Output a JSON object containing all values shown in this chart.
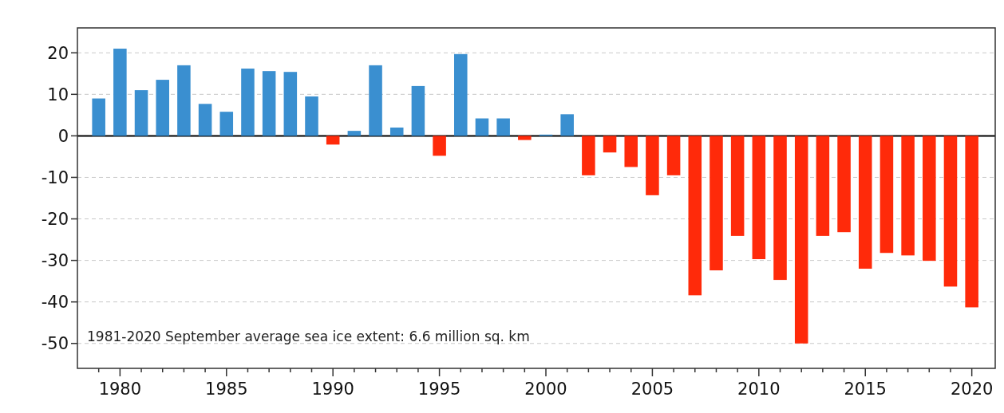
{
  "chart_data": {
    "type": "bar",
    "x": [
      1979,
      1980,
      1981,
      1982,
      1983,
      1984,
      1985,
      1986,
      1987,
      1988,
      1989,
      1990,
      1991,
      1992,
      1993,
      1994,
      1995,
      1996,
      1997,
      1998,
      1999,
      2000,
      2001,
      2002,
      2003,
      2004,
      2005,
      2006,
      2007,
      2008,
      2009,
      2010,
      2011,
      2012,
      2013,
      2014,
      2015,
      2016,
      2017,
      2018,
      2019,
      2020
    ],
    "values": [
      9,
      21,
      11,
      13.5,
      17,
      7.7,
      5.8,
      16.2,
      15.6,
      15.4,
      9.5,
      -2.1,
      1.2,
      17,
      2,
      12,
      -4.8,
      19.7,
      4.2,
      4.2,
      -1,
      0.3,
      5.2,
      -9.5,
      -4,
      -7.5,
      -14.3,
      -9.5,
      -38.4,
      -32.4,
      -24.1,
      -29.7,
      -34.7,
      -50,
      -24.1,
      -23.2,
      -32,
      -28.2,
      -28.8,
      -30.1,
      -36.3,
      -41.3
    ],
    "colors": [
      "#3a8fd0",
      "#3a8fd0",
      "#3a8fd0",
      "#3a8fd0",
      "#3a8fd0",
      "#3a8fd0",
      "#3a8fd0",
      "#3a8fd0",
      "#3a8fd0",
      "#3a8fd0",
      "#3a8fd0",
      "#ff2a0a",
      "#3a8fd0",
      "#3a8fd0",
      "#3a8fd0",
      "#3a8fd0",
      "#ff2a0a",
      "#3a8fd0",
      "#3a8fd0",
      "#3a8fd0",
      "#ff2a0a",
      "#3a8fd0",
      "#3a8fd0",
      "#ff2a0a",
      "#ff2a0a",
      "#ff2a0a",
      "#ff2a0a",
      "#ff2a0a",
      "#ff2a0a",
      "#ff2a0a",
      "#ff2a0a",
      "#ff2a0a",
      "#ff2a0a",
      "#ff2a0a",
      "#ff2a0a",
      "#ff2a0a",
      "#ff2a0a",
      "#ff2a0a",
      "#ff2a0a",
      "#ff2a0a",
      "#ff2a0a",
      "#ff2a0a"
    ],
    "xlim": [
      1978,
      2021.1
    ],
    "xticks": [
      {
        "value": 1979,
        "label": null
      },
      1980,
      {
        "value": 1981,
        "label": null
      },
      {
        "value": 1982,
        "label": null
      },
      {
        "value": 1983,
        "label": null
      },
      {
        "value": 1984,
        "label": null
      },
      1985,
      {
        "value": 1986,
        "label": null
      },
      {
        "value": 1987,
        "label": null
      },
      {
        "value": 1988,
        "label": null
      },
      {
        "value": 1989,
        "label": null
      },
      1990,
      {
        "value": 1991,
        "label": null
      },
      {
        "value": 1992,
        "label": null
      },
      {
        "value": 1993,
        "label": null
      },
      {
        "value": 1994,
        "label": null
      },
      1995,
      {
        "value": 1996,
        "label": null
      },
      {
        "value": 1997,
        "label": null
      },
      {
        "value": 1998,
        "label": null
      },
      {
        "value": 1999,
        "label": null
      },
      2000,
      {
        "value": 2001,
        "label": null
      },
      {
        "value": 2002,
        "label": null
      },
      {
        "value": 2003,
        "label": null
      },
      {
        "value": 2004,
        "label": null
      },
      2005,
      {
        "value": 2006,
        "label": null
      },
      {
        "value": 2007,
        "label": null
      },
      {
        "value": 2008,
        "label": null
      },
      {
        "value": 2009,
        "label": null
      },
      2010,
      {
        "value": 2011,
        "label": null
      },
      {
        "value": 2012,
        "label": null
      },
      {
        "value": 2013,
        "label": null
      },
      {
        "value": 2014,
        "label": null
      },
      2015,
      {
        "value": 2016,
        "label": null
      },
      {
        "value": 2017,
        "label": null
      },
      {
        "value": 2018,
        "label": null
      },
      {
        "value": 2019,
        "label": null
      },
      2020
    ],
    "ylim": [
      -56,
      26
    ],
    "yticks": [
      -50,
      -40,
      -30,
      -20,
      -10,
      0,
      10,
      20
    ],
    "grid": "y",
    "ref_lines": [
      {
        "axis": "y",
        "value": 0,
        "color": "#000000"
      }
    ],
    "annotations": [
      "1981-2020 September average sea ice extent: 6.6 million sq. km"
    ]
  }
}
